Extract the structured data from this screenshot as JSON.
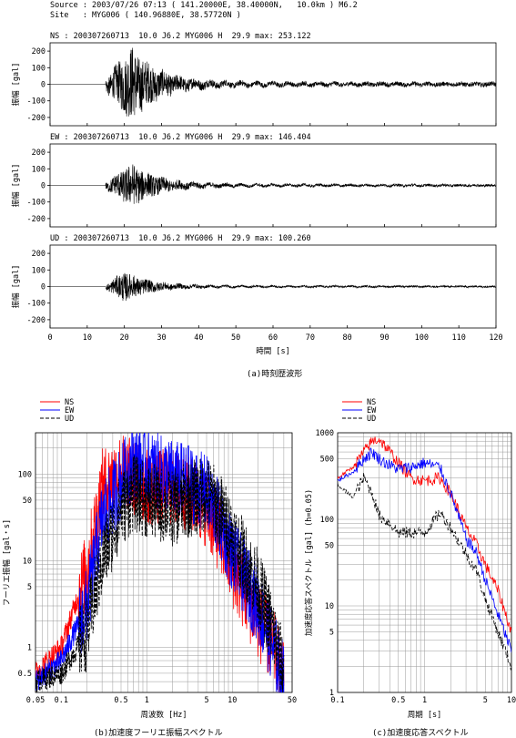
{
  "header": {
    "source_line": "Source : 2003/07/26 07:13 ( 141.20000E, 38.40000N,   10.0km ) M6.2",
    "site_line": "Site   : MYG006 ( 140.96880E, 38.57720N )"
  },
  "chart_data": [
    {
      "type": "line",
      "name": "NS",
      "panel_title": "NS : 200307260713  10.0 J6.2 MYG006 H  29.9 max: 253.122",
      "ylabel": "振幅 [gal]",
      "xlim": [
        0,
        120
      ],
      "ylim": [
        -250,
        250
      ],
      "yticks": [
        200,
        100,
        0,
        -100,
        -200
      ],
      "max_abs": 253.122,
      "onset_s": 15.0,
      "peak_s": 22.0
    },
    {
      "type": "line",
      "name": "EW",
      "panel_title": "EW : 200307260713  10.0 J6.2 MYG006 H  29.9 max: 146.404",
      "ylabel": "振幅 [gal]",
      "xlim": [
        0,
        120
      ],
      "ylim": [
        -250,
        250
      ],
      "yticks": [
        200,
        100,
        0,
        -100,
        -200
      ],
      "max_abs": 146.404,
      "onset_s": 15.0,
      "peak_s": 22.0
    },
    {
      "type": "line",
      "name": "UD",
      "panel_title": "UD : 200307260713  10.0 J6.2 MYG006 H  29.9 max: 100.260",
      "ylabel": "振幅 [gal]",
      "xlim": [
        0,
        120
      ],
      "ylim": [
        -250,
        250
      ],
      "yticks": [
        200,
        100,
        0,
        -100,
        -200
      ],
      "max_abs": 100.26,
      "onset_s": 15.0,
      "peak_s": 20.0,
      "xlabel": "時間 [s]",
      "xticks": [
        0,
        10,
        20,
        30,
        40,
        50,
        60,
        70,
        80,
        90,
        100,
        110,
        120
      ]
    },
    {
      "type": "line",
      "title": "(b)加速度フーリエ振幅スペクトル",
      "xlabel": "周波数 [Hz]",
      "ylabel": "フーリエ振幅 [gal・s]",
      "xscale": "log",
      "yscale": "log",
      "xlim": [
        0.05,
        50
      ],
      "ylim": [
        0.3,
        300
      ],
      "xticks": [
        "0.05",
        "0.1",
        "0.5",
        "1",
        "5",
        "10",
        "50"
      ],
      "yticks": [
        "100",
        "50",
        "10",
        "5",
        "1",
        "0.5"
      ],
      "legend_position": "top-left",
      "series": [
        {
          "name": "NS",
          "color": "#ff0000",
          "style": "solid",
          "x": [
            0.05,
            0.1,
            0.2,
            0.3,
            0.5,
            0.7,
            1,
            2,
            3,
            5,
            7,
            10,
            20,
            30,
            40
          ],
          "y": [
            0.5,
            1,
            8,
            70,
            110,
            90,
            70,
            70,
            60,
            40,
            20,
            8,
            2,
            1,
            0.4
          ]
        },
        {
          "name": "EW",
          "color": "#0000ff",
          "style": "solid",
          "x": [
            0.05,
            0.1,
            0.2,
            0.3,
            0.5,
            0.7,
            1,
            2,
            3,
            5,
            7,
            10,
            20,
            30,
            40
          ],
          "y": [
            0.4,
            0.7,
            3,
            30,
            80,
            140,
            120,
            90,
            80,
            60,
            30,
            12,
            3,
            1,
            0.4
          ]
        },
        {
          "name": "UD",
          "color": "#000000",
          "style": "dashed",
          "x": [
            0.05,
            0.1,
            0.2,
            0.3,
            0.5,
            0.7,
            1,
            2,
            3,
            5,
            7,
            10,
            20,
            30,
            40
          ],
          "y": [
            0.4,
            0.5,
            1.5,
            10,
            40,
            60,
            50,
            40,
            50,
            60,
            40,
            20,
            5,
            1.5,
            0.5
          ]
        }
      ]
    },
    {
      "type": "line",
      "title": "(c)加速度応答スペクトル",
      "xlabel": "周期 [s]",
      "ylabel": "加速度応答スペクトル [gal] (h=0.05)",
      "xscale": "log",
      "yscale": "log",
      "xlim": [
        0.1,
        10
      ],
      "ylim": [
        1,
        1000
      ],
      "xticks": [
        "0.1",
        "0.5",
        "1",
        "5",
        "10"
      ],
      "yticks": [
        "1000",
        "500",
        "100",
        "50",
        "10",
        "5",
        "1"
      ],
      "legend_position": "top-left",
      "series": [
        {
          "name": "NS",
          "color": "#ff0000",
          "style": "solid",
          "x": [
            0.1,
            0.15,
            0.2,
            0.25,
            0.3,
            0.4,
            0.5,
            0.7,
            1,
            1.5,
            2,
            3,
            4,
            5,
            7,
            10
          ],
          "y": [
            300,
            400,
            600,
            800,
            850,
            600,
            450,
            300,
            280,
            300,
            200,
            80,
            50,
            30,
            15,
            5
          ]
        },
        {
          "name": "EW",
          "color": "#0000ff",
          "style": "solid",
          "x": [
            0.1,
            0.15,
            0.2,
            0.25,
            0.3,
            0.4,
            0.5,
            0.7,
            1,
            1.5,
            2,
            3,
            4,
            5,
            7,
            10
          ],
          "y": [
            280,
            350,
            500,
            600,
            500,
            420,
            380,
            400,
            450,
            400,
            200,
            60,
            40,
            20,
            8,
            3
          ]
        },
        {
          "name": "UD",
          "color": "#000000",
          "style": "dashed",
          "x": [
            0.1,
            0.15,
            0.2,
            0.25,
            0.3,
            0.4,
            0.5,
            0.7,
            1,
            1.5,
            2,
            3,
            4,
            5,
            7,
            10
          ],
          "y": [
            250,
            180,
            300,
            200,
            110,
            90,
            70,
            70,
            70,
            120,
            80,
            40,
            25,
            12,
            5,
            2
          ]
        }
      ]
    }
  ],
  "captions": {
    "time": "(a)時刻歴波形"
  }
}
